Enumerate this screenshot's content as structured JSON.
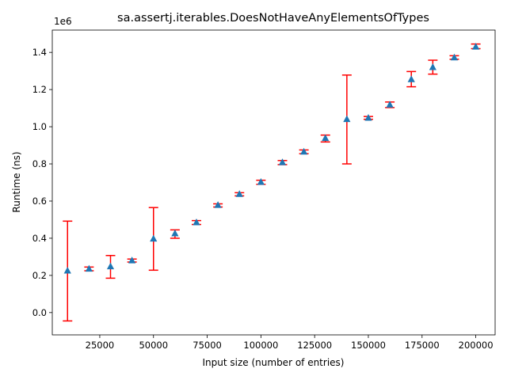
{
  "chart_data": {
    "type": "scatter",
    "title": "sa.assertj.iterables.DoesNotHaveAnyElementsOfTypes",
    "xlabel": "Input size (number of entries)",
    "ylabel": "Runtime (ns)",
    "y_offset_label": "1e6",
    "y_scale": 1000000,
    "xlim": [
      2900,
      209000
    ],
    "ylim": [
      -120000,
      1520000
    ],
    "x_ticks": [
      25000,
      50000,
      75000,
      100000,
      125000,
      150000,
      175000,
      200000
    ],
    "x_tick_labels": [
      "25000",
      "50000",
      "75000",
      "100000",
      "125000",
      "150000",
      "175000",
      "200000"
    ],
    "y_ticks": [
      0,
      200000,
      400000,
      600000,
      800000,
      1000000,
      1200000,
      1400000
    ],
    "y_tick_labels": [
      "0.0",
      "0.2",
      "0.4",
      "0.6",
      "0.8",
      "1.0",
      "1.2",
      "1.4"
    ],
    "grid": false,
    "marker": "triangle-up",
    "marker_color": "#1f77b4",
    "errorbar_color": "#ff0000",
    "series": [
      {
        "x": [
          10000,
          20000,
          30000,
          40000,
          50000,
          60000,
          70000,
          80000,
          90000,
          100000,
          110000,
          120000,
          130000,
          140000,
          150000,
          160000,
          170000,
          180000,
          190000,
          200000
        ],
        "y": [
          225000,
          235000,
          248000,
          280000,
          397000,
          425000,
          485000,
          578000,
          637000,
          702000,
          808000,
          865000,
          938000,
          1040000,
          1047000,
          1118000,
          1255000,
          1320000,
          1372000,
          1430000
        ],
        "y_low": [
          -45000,
          225000,
          185000,
          272000,
          228000,
          400000,
          474000,
          568000,
          628000,
          690000,
          796000,
          855000,
          918000,
          800000,
          1040000,
          1103000,
          1215000,
          1283000,
          1363000,
          1420000
        ],
        "y_high": [
          492000,
          245000,
          307000,
          288000,
          565000,
          445000,
          495000,
          585000,
          645000,
          712000,
          818000,
          875000,
          955000,
          1278000,
          1055000,
          1133000,
          1297000,
          1358000,
          1382000,
          1445000
        ]
      }
    ]
  }
}
